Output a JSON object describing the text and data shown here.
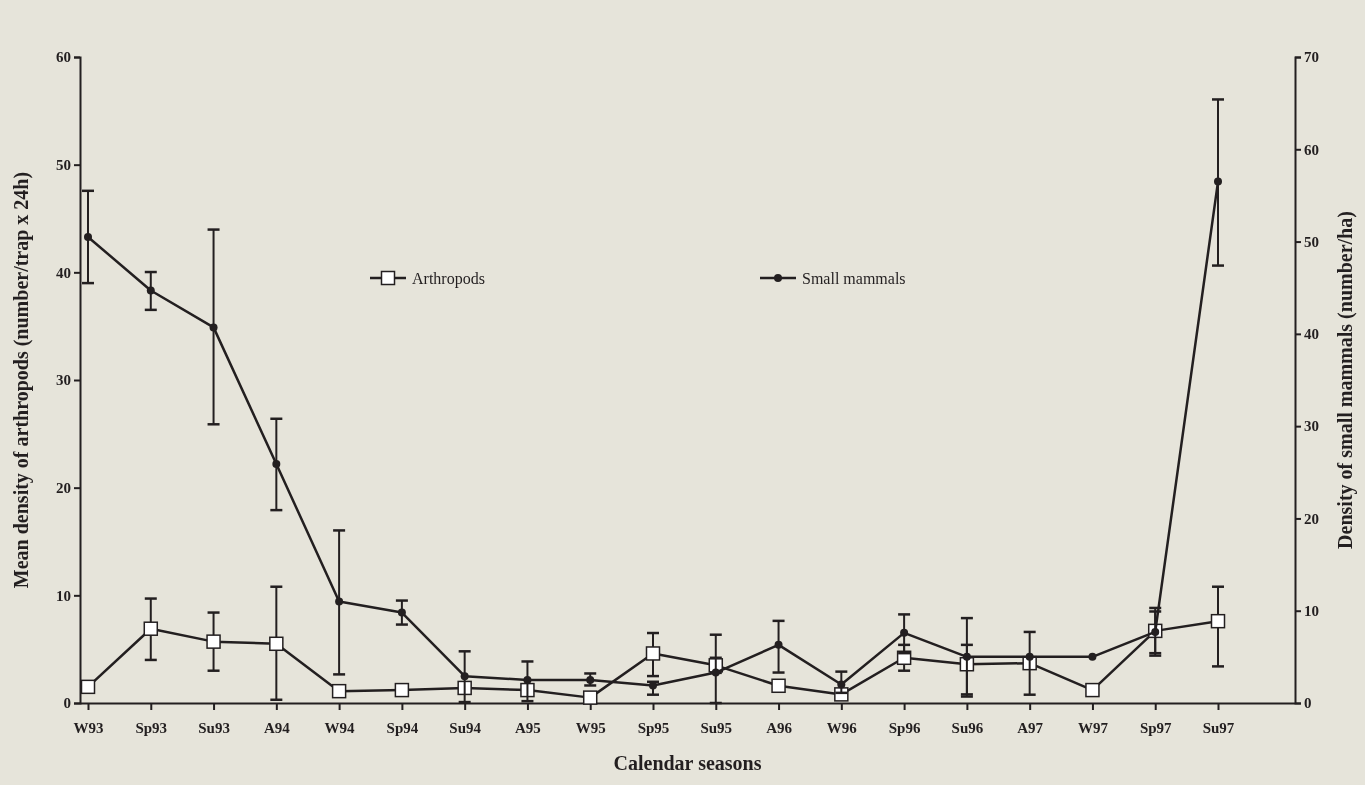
{
  "chart_data": {
    "type": "line",
    "xlabel": "Calendar seasons",
    "ylabel": "Mean density of arthropods (number/trap x 24h)",
    "y2label": "Density of small mammals (number/ha)",
    "categories": [
      "W93",
      "Sp93",
      "Su93",
      "A94",
      "W94",
      "Sp94",
      "Su94",
      "A95",
      "W95",
      "Sp95",
      "Su95",
      "A96",
      "W96",
      "Sp96",
      "Su96",
      "A97",
      "W97",
      "Sp97",
      "Su97"
    ],
    "series": [
      {
        "name": "Arthropods",
        "color": "#231f20",
        "marker": "square",
        "values": [
          1.5,
          6.9,
          5.7,
          5.5,
          1.1,
          1.2,
          1.4,
          1.2,
          0.5,
          4.6,
          3.5,
          1.6,
          0.8,
          4.2,
          3.6,
          3.7,
          1.2,
          6.7,
          7.6
        ],
        "errors": [
          0.4,
          [
            4.0,
            9.7
          ],
          [
            3.0,
            8.4
          ],
          [
            0.3,
            10.8
          ],
          0.4,
          0.5,
          null,
          null,
          null,
          [
            2.5,
            6.5
          ],
          0.7,
          null,
          null,
          [
            3.0,
            5.4
          ],
          [
            0.8,
            5.4
          ],
          null,
          null,
          [
            4.4,
            8.5
          ],
          [
            3.4,
            10.8
          ]
        ]
      },
      {
        "name": "Small mammals",
        "color": "#231f20",
        "marker": "circle",
        "axis": "y2",
        "values": [
          50.5,
          44.7,
          40.7,
          25.9,
          11.0,
          9.8,
          2.9,
          2.5,
          2.5,
          1.9,
          3.3,
          6.3,
          2.0,
          7.6,
          5.0,
          5.0,
          5.0,
          7.7,
          56.5
        ],
        "errors": [
          [
            45.5,
            55.5
          ],
          [
            42.6,
            46.7
          ],
          [
            30.2,
            51.3
          ],
          [
            20.9,
            30.8
          ],
          [
            3.1,
            18.7
          ],
          [
            8.5,
            11.1
          ],
          [
            0.1,
            5.6
          ],
          [
            0.2,
            4.5
          ],
          [
            1.9,
            3.2
          ],
          [
            0.9,
            2.3
          ],
          [
            0,
            7.4
          ],
          [
            3.3,
            8.9
          ],
          [
            1.1,
            3.4
          ],
          [
            5.4,
            9.6
          ],
          [
            0.7,
            9.2
          ],
          [
            0.9,
            7.7
          ],
          null,
          [
            5.4,
            10.3
          ],
          [
            47.4,
            65.4
          ]
        ]
      }
    ],
    "ylim": [
      0,
      60
    ],
    "yticks": [
      0,
      10,
      20,
      30,
      40,
      50,
      60
    ],
    "y2lim": [
      0,
      70
    ],
    "y2ticks": [
      0,
      10,
      20,
      30,
      40,
      50,
      60,
      70
    ],
    "legend": "top",
    "grid": false,
    "line_style": "solid"
  }
}
